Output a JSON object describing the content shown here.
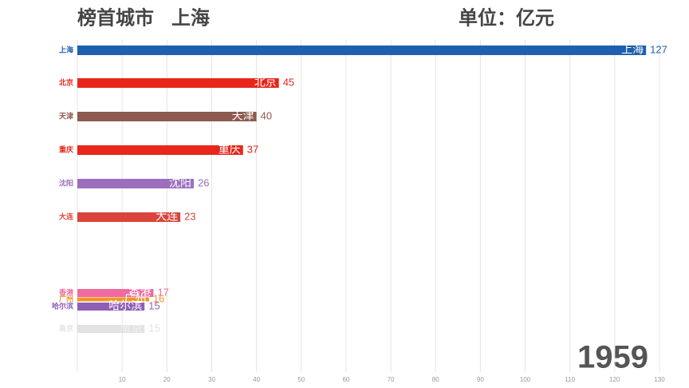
{
  "chart_data": {
    "type": "bar",
    "orientation": "horizontal",
    "title": "榜首城市",
    "leader": "上海",
    "unit": "单位：亿元",
    "year": "1959",
    "categories": [
      "上海",
      "北京",
      "天津",
      "重庆",
      "沈阳",
      "大连",
      "香港",
      "广州",
      "哈尔滨",
      "南京"
    ],
    "values": [
      127,
      45,
      40,
      37,
      26,
      23,
      17,
      16,
      15,
      15
    ],
    "colors": [
      "#1f5fb0",
      "#e8261c",
      "#8c5a4e",
      "#e8261c",
      "#9b6fbe",
      "#d9453a",
      "#f06aa0",
      "#f0962a",
      "#8f5fb5",
      "#c8c8c8"
    ],
    "xlim": [
      0,
      130
    ],
    "xticks": [
      10,
      20,
      30,
      40,
      50,
      60,
      70,
      80,
      90,
      100,
      110,
      120,
      130
    ],
    "grid": true
  }
}
